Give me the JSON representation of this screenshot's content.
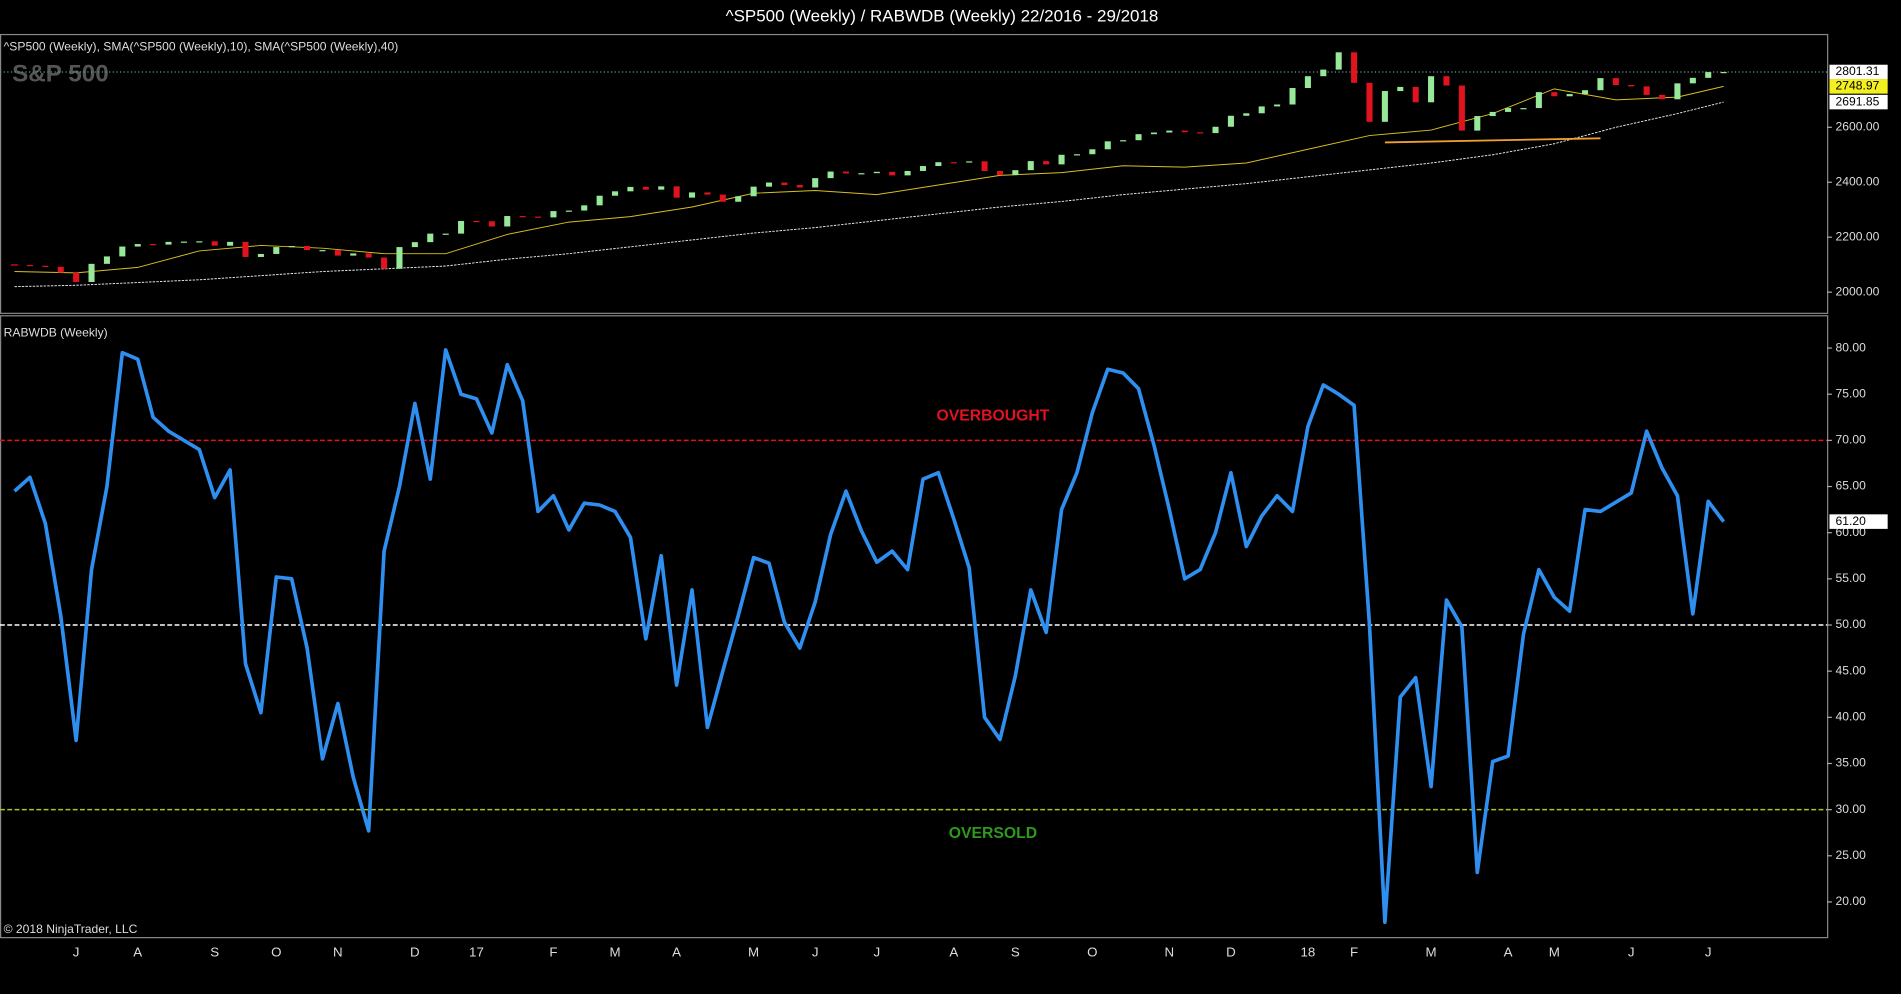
{
  "title": "^SP500 (Weekly) / RABWDB (Weekly)  22/2016 - 29/2018",
  "copyright": "© 2018 NinjaTrader, LLC",
  "chart_data": [
    {
      "type": "candlestick",
      "title": "^SP500 (Weekly),  SMA(^SP500 (Weekly),10),  SMA(^SP500 (Weekly),40)",
      "watermark": "S&P 500",
      "up_color": "#98e89a",
      "down_color": "#e0131e",
      "close": [
        2099,
        2096,
        2092,
        2071,
        2037,
        2103,
        2130,
        2166,
        2175,
        2173,
        2183,
        2184,
        2185,
        2169,
        2183,
        2128,
        2139,
        2164,
        2168,
        2153,
        2153,
        2133,
        2141,
        2126,
        2085,
        2164,
        2182,
        2213,
        2213,
        2259,
        2258,
        2239,
        2277,
        2275,
        2272,
        2295,
        2297,
        2316,
        2351,
        2367,
        2383,
        2373,
        2385,
        2344,
        2363,
        2355,
        2329,
        2349,
        2384,
        2399,
        2390,
        2381,
        2415,
        2439,
        2432,
        2433,
        2438,
        2425,
        2441,
        2459,
        2473,
        2472,
        2476,
        2441,
        2426,
        2444,
        2477,
        2465,
        2500,
        2502,
        2520,
        2549,
        2553,
        2575,
        2581,
        2588,
        2582,
        2579,
        2602,
        2642,
        2651,
        2676,
        2683,
        2743,
        2786,
        2810,
        2873,
        2762,
        2620,
        2732,
        2747,
        2691,
        2786,
        2752,
        2588,
        2641,
        2656,
        2670,
        2670,
        2728,
        2713,
        2721,
        2735,
        2779,
        2754,
        2749,
        2718,
        2702,
        2760,
        2780,
        2801,
        2801.31
      ],
      "close_label": "2801.31",
      "sma": [
        {
          "color": "#d8c020",
          "label": "2748.97",
          "x": [
            0,
            4,
            8,
            12,
            16,
            20,
            24,
            28,
            32,
            36,
            40,
            44,
            48,
            52,
            56,
            60,
            64,
            68,
            72,
            76,
            80,
            84,
            88,
            92,
            96,
            100,
            104,
            108,
            111
          ],
          "values": [
            2075,
            2070,
            2090,
            2150,
            2170,
            2160,
            2140,
            2140,
            2210,
            2255,
            2275,
            2310,
            2360,
            2370,
            2355,
            2390,
            2425,
            2435,
            2460,
            2455,
            2470,
            2520,
            2570,
            2590,
            2650,
            2740,
            2700,
            2710,
            2748.97
          ]
        },
        {
          "color": "#e8e8e8",
          "label": "2691.85",
          "x": [
            0,
            4,
            8,
            12,
            16,
            20,
            24,
            28,
            32,
            36,
            40,
            44,
            48,
            52,
            56,
            60,
            64,
            68,
            72,
            76,
            80,
            84,
            88,
            92,
            96,
            100,
            104,
            108,
            111
          ],
          "values": [
            2020,
            2025,
            2035,
            2045,
            2060,
            2075,
            2085,
            2095,
            2120,
            2140,
            2165,
            2190,
            2215,
            2235,
            2260,
            2285,
            2310,
            2330,
            2355,
            2375,
            2395,
            2420,
            2445,
            2470,
            2500,
            2540,
            2600,
            2650,
            2691.85
          ]
        }
      ],
      "trendline": {
        "color": "#f0a030",
        "x": [
          89,
          103
        ],
        "values": [
          2545,
          2560
        ]
      },
      "ylim": [
        1925,
        2931
      ],
      "yticks": [
        {
          "value": 2000,
          "label": "2000.00"
        },
        {
          "value": 2200,
          "label": "2200.00"
        },
        {
          "value": 2400,
          "label": "2400.00"
        },
        {
          "value": 2600,
          "label": "2600.00"
        }
      ]
    },
    {
      "type": "line",
      "title": "RABWDB (Weekly)",
      "categories": [
        null,
        null,
        null,
        null,
        "J",
        null,
        null,
        null,
        "A",
        null,
        null,
        null,
        null,
        "S",
        null,
        null,
        null,
        "O",
        null,
        null,
        null,
        "N",
        null,
        null,
        null,
        null,
        "D",
        null,
        null,
        null,
        "17",
        null,
        null,
        null,
        null,
        "F",
        null,
        null,
        null,
        "M",
        null,
        null,
        null,
        "A",
        null,
        null,
        null,
        null,
        "M",
        null,
        null,
        null,
        "J",
        null,
        null,
        null,
        "J",
        null,
        null,
        null,
        null,
        "A",
        null,
        null,
        null,
        "S",
        null,
        null,
        null,
        null,
        "O",
        null,
        null,
        null,
        null,
        "N",
        null,
        null,
        null,
        "D",
        null,
        null,
        null,
        null,
        "18",
        null,
        null,
        "F",
        null,
        null,
        null,
        null,
        "M",
        null,
        null,
        null,
        null,
        "A",
        null,
        null,
        "M",
        null,
        null,
        null,
        null,
        "J",
        null,
        null,
        null,
        null,
        "J",
        null
      ],
      "color": "#2f8ff0",
      "values": [
        64.5,
        66,
        61,
        51,
        37.5,
        56,
        65,
        79.5,
        78.8,
        72.5,
        71,
        70,
        69,
        63.8,
        66.8,
        45.8,
        40.5,
        55.2,
        55,
        47.5,
        35.5,
        41.5,
        33.5,
        27.7,
        58,
        65,
        74,
        65.8,
        79.8,
        75,
        74.5,
        70.8,
        78.2,
        74.3,
        62.3,
        64,
        60.3,
        63.2,
        63,
        62.3,
        59.5,
        48.5,
        57.5,
        43.5,
        53.8,
        38.9,
        45,
        51,
        57.3,
        56.7,
        50.3,
        47.5,
        52.5,
        59.8,
        64.5,
        60.2,
        56.8,
        58,
        56,
        65.8,
        66.5,
        61.5,
        56.2,
        40,
        37.6,
        44.5,
        53.8,
        49.2,
        62.5,
        66.5,
        73,
        77.7,
        77.3,
        75.6,
        69.5,
        62.5,
        55,
        56,
        60,
        66.5,
        58.5,
        61.8,
        64,
        62.3,
        71.5,
        76,
        75,
        73.8,
        50,
        17.8,
        42.2,
        44.3,
        32.5,
        52.7,
        49.8,
        23.2,
        35.2,
        35.8,
        49,
        56,
        53,
        51.5,
        62.5,
        62.3,
        63.3,
        64.3,
        71,
        67,
        64,
        51.2,
        63.4,
        61.2
      ],
      "last_label": "61.20",
      "levels": [
        {
          "value": 70,
          "color": "#e0131e",
          "label": "OVERBOUGHT"
        },
        {
          "value": 50,
          "color": "#ffffff"
        },
        {
          "value": 30,
          "color": "#a8c820",
          "label": "OVERSOLD",
          "label_color": "#2e9a1c"
        }
      ],
      "ylim": [
        16.2,
        83.3
      ],
      "yticks": [
        {
          "value": 20,
          "label": "20.00"
        },
        {
          "value": 25,
          "label": "25.00"
        },
        {
          "value": 30,
          "label": "30.00"
        },
        {
          "value": 35,
          "label": "35.00"
        },
        {
          "value": 40,
          "label": "40.00"
        },
        {
          "value": 45,
          "label": "45.00"
        },
        {
          "value": 50,
          "label": "50.00"
        },
        {
          "value": 55,
          "label": "55.00"
        },
        {
          "value": 60,
          "label": "60.00"
        },
        {
          "value": 65,
          "label": "65.00"
        },
        {
          "value": 70,
          "label": "70.00"
        },
        {
          "value": 75,
          "label": "75.00"
        },
        {
          "value": 80,
          "label": "80.00"
        }
      ]
    }
  ]
}
